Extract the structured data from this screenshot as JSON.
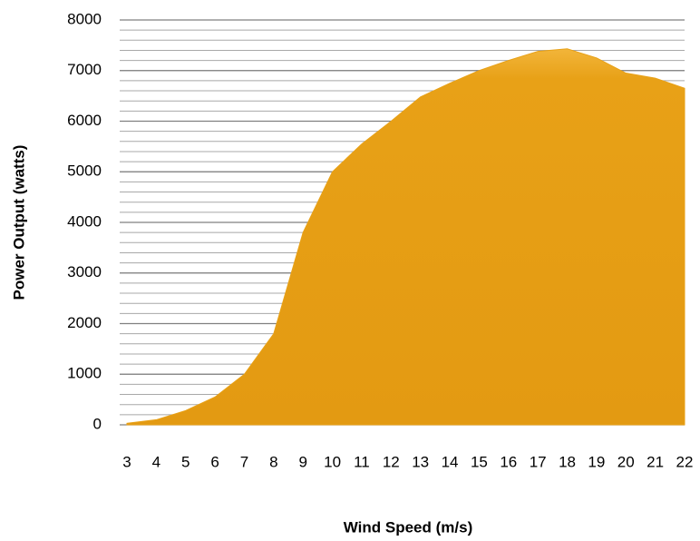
{
  "chart_data": {
    "type": "area",
    "x_label": "Wind Speed (m/s)",
    "y_label": "Power Output (watts)",
    "categories": [
      "3",
      "4",
      "5",
      "6",
      "7",
      "8",
      "9",
      "10",
      "11",
      "12",
      "13",
      "14",
      "15",
      "16",
      "17",
      "18",
      "19",
      "20",
      "21",
      "22"
    ],
    "values": [
      30,
      100,
      280,
      550,
      1000,
      1800,
      3800,
      5000,
      5550,
      6000,
      6480,
      6750,
      7000,
      7200,
      7380,
      7430,
      7250,
      6950,
      6850,
      6650
    ],
    "color": "#e8a117",
    "ylim": [
      0,
      8000
    ],
    "yticks": [
      0,
      1000,
      2000,
      3000,
      4000,
      5000,
      6000,
      7000,
      8000
    ],
    "grid": true,
    "minor_grid_step": 200
  }
}
